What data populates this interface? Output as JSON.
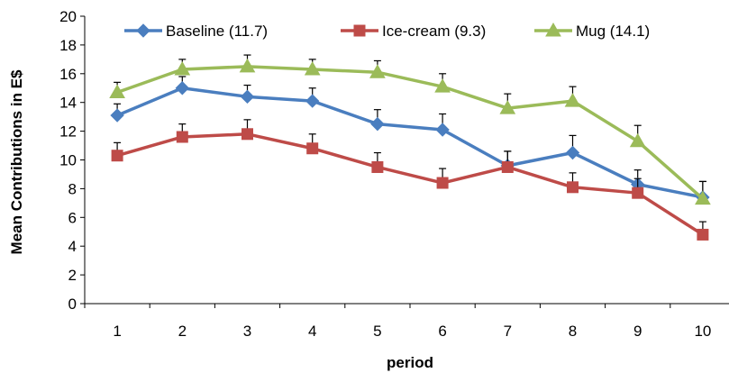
{
  "chart_data": {
    "type": "line",
    "title": "",
    "xlabel": "period",
    "ylabel": "Mean Contributions in E$",
    "categories": [
      "1",
      "2",
      "3",
      "4",
      "5",
      "6",
      "7",
      "8",
      "9",
      "10"
    ],
    "ylim": [
      0,
      20
    ],
    "yticks": [
      0,
      2,
      4,
      6,
      8,
      10,
      12,
      14,
      16,
      18,
      20
    ],
    "grid": false,
    "error_bars": "upper",
    "legend_position": "top",
    "series": [
      {
        "name": "Baseline (11.7)",
        "color": "#4a7ebf",
        "marker": "diamond",
        "values": [
          13.1,
          15.0,
          14.4,
          14.1,
          12.5,
          12.1,
          9.6,
          10.5,
          8.3,
          7.4
        ],
        "errors": [
          0.8,
          0.8,
          0.8,
          0.9,
          1.0,
          1.1,
          1.0,
          1.2,
          1.0,
          1.1
        ]
      },
      {
        "name": "Ice-cream (9.3)",
        "color": "#be4b48",
        "marker": "square",
        "values": [
          10.3,
          11.6,
          11.8,
          10.8,
          9.5,
          8.4,
          9.5,
          8.1,
          7.7,
          4.8
        ],
        "errors": [
          0.9,
          0.9,
          1.0,
          1.0,
          1.0,
          1.0,
          1.1,
          1.0,
          1.0,
          0.9
        ]
      },
      {
        "name": "Mug (14.1)",
        "color": "#9bbb59",
        "marker": "triangle",
        "values": [
          14.7,
          16.3,
          16.5,
          16.3,
          16.1,
          15.1,
          13.6,
          14.1,
          11.3,
          7.3
        ],
        "errors": [
          0.7,
          0.7,
          0.8,
          0.7,
          0.8,
          0.9,
          1.0,
          1.0,
          1.1,
          1.2
        ]
      }
    ]
  }
}
